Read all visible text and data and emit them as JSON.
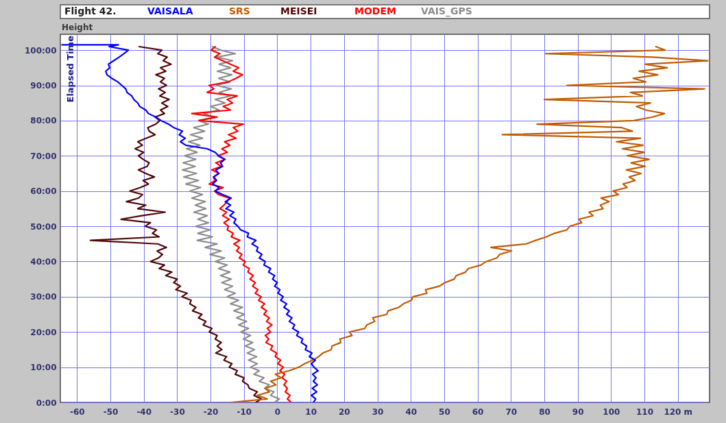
{
  "chart_data": {
    "type": "line",
    "title": "Flight 42.",
    "xlabel": "Height",
    "ylabel": "Elapsed Time",
    "xlim": [
      -65,
      129.5
    ],
    "ylim": [
      0,
      104.5
    ],
    "xticks": [
      -60,
      -50,
      -40,
      -30,
      -20,
      -10,
      0,
      10,
      20,
      30,
      40,
      50,
      60,
      70,
      80,
      90,
      100,
      110,
      {
        "value": 120,
        "label": "120 m"
      }
    ],
    "yticks": [
      {
        "value": 0,
        "label": "0:00"
      },
      {
        "value": 10,
        "label": "10:00"
      },
      {
        "value": 20,
        "label": "20:00"
      },
      {
        "value": 30,
        "label": "30:00"
      },
      {
        "value": 40,
        "label": "40:00"
      },
      {
        "value": 50,
        "label": "50:00"
      },
      {
        "value": 60,
        "label": "60:00"
      },
      {
        "value": 70,
        "label": "70:00"
      },
      {
        "value": 80,
        "label": "80:00"
      },
      {
        "value": 90,
        "label": "90:00"
      },
      {
        "value": 100,
        "label": "100:00"
      }
    ],
    "grid": true,
    "legend": "top",
    "series": [
      {
        "name": "VAISALA",
        "color": "#0000ff",
        "x": [
          10.8,
          11.5,
          10.2,
          11.8,
          10.5,
          12,
          10.8,
          11.6,
          10.6,
          12.2,
          11,
          10.2,
          11.4,
          9.6,
          10.4,
          8.4,
          8.8,
          7.2,
          7.6,
          5.8,
          6.4,
          4.6,
          5.2,
          3.6,
          4.4,
          2.8,
          3.6,
          2,
          2.8,
          1,
          1.8,
          0.2,
          0.8,
          -0.8,
          0,
          -1.4,
          -0.8,
          -2.6,
          -2,
          -4,
          -3.6,
          -5.4,
          -4.6,
          -6.2,
          -5.8,
          -7.6,
          -6.4,
          -9,
          -8.6,
          -11,
          -11.8,
          -13,
          -12.4,
          -14.2,
          -13,
          -15.4,
          -14,
          -15.6,
          -13.8,
          -16.4,
          -18.6,
          -17.4,
          -19.4,
          -18.2,
          -19,
          -17.6,
          -18.4,
          -16.4,
          -17,
          -15.8,
          -17.6,
          -18.6,
          -21,
          -27.4,
          -29,
          -27.6,
          -29.4,
          -28.4,
          -31,
          -32.6,
          -34.8,
          -36.4,
          -38.6,
          -39.4,
          -41.2,
          -41.8,
          -43,
          -43.6,
          -45,
          -45.4,
          -46.6,
          -47.8,
          -49.6,
          -51,
          -51.4,
          -50.2,
          -50.6,
          -49,
          -47.4,
          -46,
          -44.6,
          -50.4,
          -47.6,
          -64.5
        ],
        "values": [
          0,
          1,
          2,
          3,
          4,
          5,
          6,
          7,
          8,
          9,
          10,
          11,
          12,
          13,
          14,
          15,
          16,
          17,
          18,
          19,
          20,
          21,
          22,
          23,
          24,
          25,
          26,
          27,
          28,
          29,
          30,
          31,
          32,
          33,
          34,
          35,
          36,
          37,
          38,
          39,
          40,
          41,
          42,
          43,
          44,
          45,
          46,
          47,
          48,
          49,
          50,
          51,
          52,
          53,
          54,
          55,
          56,
          57,
          58,
          59,
          60,
          61,
          62,
          63,
          64,
          65,
          66,
          67,
          68,
          69,
          70,
          71,
          72,
          73,
          74,
          75,
          76,
          77,
          78,
          79,
          80,
          81,
          82,
          83,
          84,
          85,
          86,
          87,
          88,
          89,
          90,
          91,
          92,
          93,
          94,
          95,
          96,
          97,
          98,
          99,
          100,
          101,
          101.5,
          101.5
        ]
      },
      {
        "name": "SRS",
        "color": "#c25b00",
        "x": [
          -14,
          -3,
          -6,
          -2.4,
          -3.6,
          -0.4,
          -2,
          1.2,
          -0.6,
          3.6,
          6.4,
          8.2,
          10.6,
          12.4,
          13.6,
          16.2,
          16.4,
          19,
          18.8,
          22.4,
          21.6,
          26.2,
          26.8,
          29.2,
          28.6,
          32.8,
          33.2,
          36.4,
          37.8,
          40.2,
          40.6,
          44.8,
          44.4,
          48.6,
          50.2,
          53,
          53.6,
          56.4,
          57.2,
          61,
          62.6,
          65.8,
          66.6,
          70.2,
          64,
          74.6,
          77.4,
          80.6,
          83,
          86.8,
          87.6,
          91.2,
          90.4,
          94.6,
          93.4,
          97.6,
          96.8,
          99.4,
          97,
          102.2,
          100.6,
          104.8,
          103.6,
          107.2,
          105.4,
          109,
          104.6,
          110.2,
          106,
          111.4,
          104.8,
          110,
          103.4,
          109.6,
          101.6,
          108.8,
          67.4,
          106.4,
          103.2,
          77.8,
          106.8,
          112.4,
          116,
          110.4,
          107.6,
          111.8,
          80,
          109.4,
          105.8,
          128,
          86.8,
          110.4,
          106.6,
          114,
          108.4,
          116.8,
          110.2,
          129,
          112.6,
          80.4,
          116.2,
          113.4
        ],
        "values": [
          0,
          1,
          2,
          3,
          4,
          5,
          6,
          7,
          8,
          9,
          10,
          11,
          12,
          13,
          14,
          15,
          16,
          17,
          18,
          19,
          20,
          21,
          22,
          23,
          24,
          25,
          26,
          27,
          28,
          29,
          30,
          31,
          32,
          33,
          34,
          35,
          36,
          37,
          38,
          39,
          40,
          41,
          42,
          43,
          44,
          45,
          46,
          47,
          48,
          49,
          50,
          51,
          52,
          53,
          54,
          55,
          56,
          57,
          58,
          59,
          60,
          61,
          62,
          63,
          64,
          65,
          66,
          67,
          68,
          69,
          70,
          71,
          72,
          73,
          74,
          75,
          76,
          77,
          78,
          79,
          80,
          81,
          82,
          83,
          84,
          85,
          86,
          87,
          88,
          89,
          90,
          91,
          92,
          93,
          94,
          95,
          96,
          97,
          98,
          99,
          100,
          101
        ]
      },
      {
        "name": "MEISEI",
        "color": "#500505",
        "x": [
          -6.4,
          -4.8,
          -7,
          -6,
          -8.4,
          -8.8,
          -10.4,
          -10,
          -12.6,
          -12,
          -14.4,
          -13.6,
          -16,
          -15.2,
          -18.4,
          -16.6,
          -18,
          -16.8,
          -18.6,
          -18,
          -20.4,
          -19.6,
          -22.2,
          -21.4,
          -23.6,
          -22.6,
          -25.4,
          -24.4,
          -26.2,
          -25.8,
          -28.6,
          -27,
          -30.4,
          -29,
          -31,
          -30,
          -33.4,
          -31.6,
          -35.4,
          -33.8,
          -38,
          -35.6,
          -34.4,
          -36,
          -33.2,
          -35.8,
          -56,
          -35.4,
          -37.4,
          -36.2,
          -39.6,
          -38,
          -46.8,
          -40.6,
          -33.6,
          -41.8,
          -39.4,
          -45.2,
          -41.6,
          -40.4,
          -44.2,
          -41,
          -38.6,
          -40.2,
          -36.8,
          -39.4,
          -41.6,
          -39,
          -38.4,
          -40.2,
          -41.6,
          -40,
          -42.6,
          -40.4,
          -41.8,
          -39.2,
          -36.6,
          -38.4,
          -38.8,
          -36.4,
          -35.2,
          -36.6,
          -33.8,
          -35,
          -32.8,
          -34.6,
          -32.4,
          -35.2,
          -33.6,
          -35.6,
          -33.2,
          -35,
          -33.8,
          -36.4,
          -33.4,
          -35,
          -31.8,
          -34.2,
          -33,
          -35.8,
          -34.6,
          -41.4
        ],
        "values": [
          0,
          1,
          2,
          3,
          4,
          5,
          6,
          7,
          8,
          9,
          10,
          11,
          12,
          13,
          14,
          15,
          16,
          17,
          18,
          19,
          20,
          21,
          22,
          23,
          24,
          25,
          26,
          27,
          28,
          29,
          30,
          31,
          32,
          33,
          34,
          35,
          36,
          37,
          38,
          39,
          40,
          41,
          42,
          43,
          44,
          45,
          46,
          47,
          48,
          49,
          50,
          51,
          52,
          53,
          54,
          55,
          56,
          57,
          58,
          59,
          60,
          61,
          62,
          63,
          64,
          65,
          66,
          67,
          68,
          69,
          70,
          71,
          72,
          73,
          74,
          75,
          76,
          77,
          78,
          79,
          80,
          81,
          82,
          83,
          84,
          85,
          86,
          87,
          88,
          89,
          90,
          91,
          92,
          93,
          94,
          95,
          96,
          97,
          98,
          99,
          100,
          101
        ]
      },
      {
        "name": "MODEM",
        "color": "#ff0000",
        "x": [
          4.2,
          3,
          3.8,
          2.4,
          3,
          2,
          2.8,
          1.4,
          2.2,
          0.8,
          1.8,
          0.2,
          1,
          -0.6,
          -0.2,
          -2,
          -1.4,
          -3.4,
          -2.6,
          -3.6,
          -2,
          -3,
          -1.6,
          -3.2,
          -2.4,
          -4,
          -3.2,
          -4.8,
          -3.8,
          -5.6,
          -4.8,
          -6.6,
          -5.8,
          -7.4,
          -6.6,
          -8.2,
          -7.2,
          -8.8,
          -8.4,
          -10.2,
          -9.6,
          -11.4,
          -10.6,
          -12.2,
          -11.4,
          -13,
          -11.2,
          -13.8,
          -13.2,
          -15,
          -14.6,
          -16,
          -14.4,
          -16.4,
          -15.2,
          -17.2,
          -16,
          -15,
          -14.4,
          -17.6,
          -18.8,
          -16.2,
          -20.4,
          -18.6,
          -19.2,
          -17.4,
          -19.6,
          -16.8,
          -18.4,
          -15.6,
          -17.8,
          -15,
          -16.6,
          -14.2,
          -15.8,
          -12.4,
          -14.6,
          -11.8,
          -13.2,
          -10.2,
          -23.4,
          -18,
          -25.6,
          -14,
          -16.2,
          -13.4,
          -15,
          -12,
          -21,
          -19,
          -20.4,
          -14.6,
          -12.4,
          -10.4,
          -13.2,
          -11.6,
          -14,
          -16.4,
          -18.8,
          -17.2,
          -19.8,
          -18.6
        ],
        "values": [
          0,
          1,
          2,
          3,
          4,
          5,
          6,
          7,
          8,
          9,
          10,
          11,
          12,
          13,
          14,
          15,
          16,
          17,
          18,
          19,
          20,
          21,
          22,
          23,
          24,
          25,
          26,
          27,
          28,
          29,
          30,
          31,
          32,
          33,
          34,
          35,
          36,
          37,
          38,
          39,
          40,
          41,
          42,
          43,
          44,
          45,
          46,
          47,
          48,
          49,
          50,
          51,
          52,
          53,
          54,
          55,
          56,
          57,
          58,
          59,
          60,
          61,
          62,
          63,
          64,
          65,
          66,
          67,
          68,
          69,
          70,
          71,
          72,
          73,
          74,
          75,
          76,
          77,
          78,
          79,
          80,
          81,
          82,
          83,
          84,
          85,
          86,
          87,
          88,
          89,
          90,
          91,
          92,
          93,
          94,
          95,
          96,
          97,
          98,
          99,
          100,
          101
        ]
      },
      {
        "name": "VAIS_GPS",
        "color": "#8c8c8c",
        "x": [
          -0.8,
          0.6,
          -2,
          -1,
          -3.8,
          -2.4,
          -5.4,
          -4,
          -7,
          -5.4,
          -8,
          -6,
          -8.6,
          -6.2,
          -9,
          -6.8,
          -9.6,
          -7.4,
          -10.2,
          -8,
          -11,
          -8.6,
          -11.6,
          -9.2,
          -12.2,
          -9.8,
          -13,
          -10.4,
          -14,
          -11.6,
          -15,
          -12.6,
          -15.8,
          -13.4,
          -16.6,
          -13.8,
          -17,
          -14.2,
          -17.6,
          -15,
          -18.6,
          -15.8,
          -20.2,
          -16.8,
          -21.6,
          -18,
          -24,
          -19.4,
          -23.8,
          -20.2,
          -24.4,
          -20.6,
          -23.8,
          -21,
          -25,
          -21.4,
          -24.6,
          -21.6,
          -25.6,
          -22.4,
          -26.2,
          -23,
          -27.4,
          -23.6,
          -28,
          -24.2,
          -28.4,
          -24.6,
          -28.2,
          -24.4,
          -27.8,
          -24,
          -27.2,
          -23.2,
          -26.6,
          -22.4,
          -26,
          -21.8,
          -25,
          -20.6,
          -23.6,
          -19,
          -22,
          -17.4,
          -20,
          -15.6,
          -18.6,
          -14,
          -17.4,
          -13.8,
          -18.2,
          -14.2,
          -17.6,
          -13.6,
          -18,
          -14,
          -17.4,
          -13.4,
          -18.2,
          -12.6,
          -17,
          -19.4
        ],
        "values": [
          0,
          1,
          2,
          3,
          4,
          5,
          6,
          7,
          8,
          9,
          10,
          11,
          12,
          13,
          14,
          15,
          16,
          17,
          18,
          19,
          20,
          21,
          22,
          23,
          24,
          25,
          26,
          27,
          28,
          29,
          30,
          31,
          32,
          33,
          34,
          35,
          36,
          37,
          38,
          39,
          40,
          41,
          42,
          43,
          44,
          45,
          46,
          47,
          48,
          49,
          50,
          51,
          52,
          53,
          54,
          55,
          56,
          57,
          58,
          59,
          60,
          61,
          62,
          63,
          64,
          65,
          66,
          67,
          68,
          69,
          70,
          71,
          72,
          73,
          74,
          75,
          76,
          77,
          78,
          79,
          80,
          81,
          82,
          83,
          84,
          85,
          86,
          87,
          88,
          89,
          90,
          91,
          92,
          93,
          94,
          95,
          96,
          97,
          98,
          99,
          100,
          101
        ]
      }
    ]
  }
}
